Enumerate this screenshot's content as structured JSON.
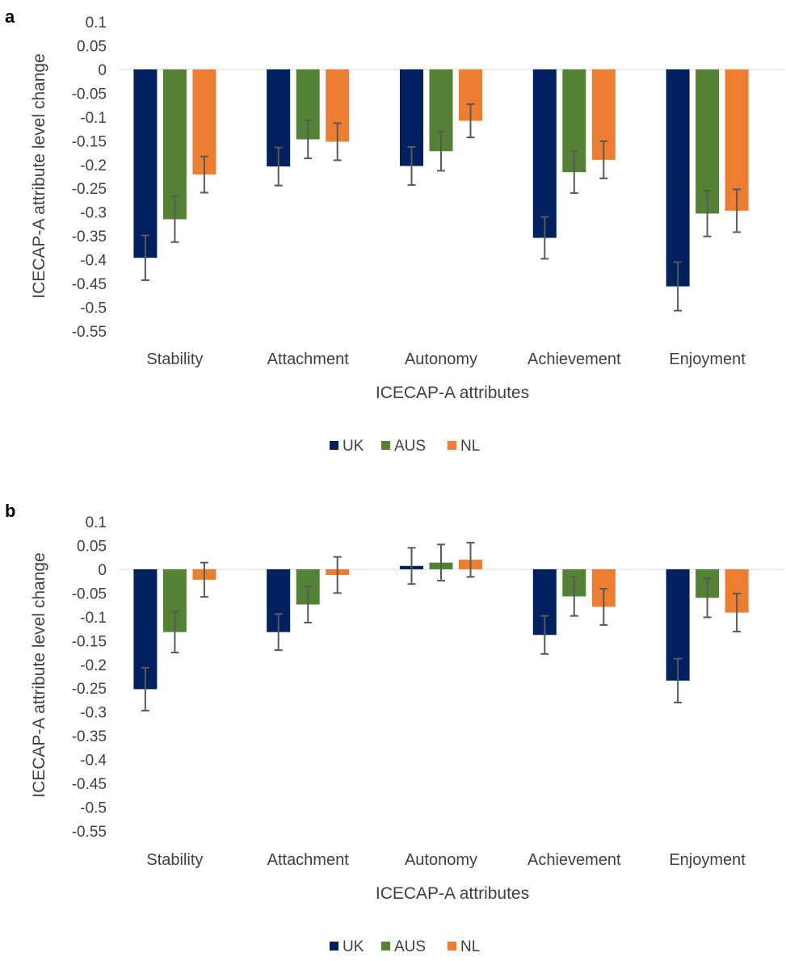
{
  "chart_data": [
    {
      "panel_label": "a",
      "type": "bar",
      "categories": [
        "Stability",
        "Attachment",
        "Autonomy",
        "Achievement",
        "Enjoyment"
      ],
      "series": [
        {
          "name": "UK",
          "color": "#002060",
          "values": [
            -0.396,
            -0.204,
            -0.203,
            -0.354,
            -0.456
          ],
          "error": [
            0.047,
            0.04,
            0.04,
            0.044,
            0.051
          ]
        },
        {
          "name": "AUS",
          "color": "#548235",
          "values": [
            -0.315,
            -0.147,
            -0.172,
            -0.216,
            -0.303
          ],
          "error": [
            0.048,
            0.04,
            0.041,
            0.044,
            0.048
          ]
        },
        {
          "name": "NL",
          "color": "#ed7d31",
          "values": [
            -0.221,
            -0.152,
            -0.108,
            -0.19,
            -0.297
          ],
          "error": [
            0.038,
            0.039,
            0.035,
            0.039,
            0.045
          ]
        }
      ],
      "yticks": [
        "0.1",
        "0.05",
        "0",
        "-0.05",
        "-0.1",
        "-0.15",
        "-0.2",
        "-0.25",
        "-0.3",
        "-0.35",
        "-0.4",
        "-0.45",
        "-0.5",
        "-0.55"
      ],
      "ylim": [
        -0.55,
        0.1
      ],
      "xlabel": "ICECAP-A attributes",
      "ylabel": "ICECAP-A attribute level change",
      "legend": "bottom-center",
      "grid": false
    },
    {
      "panel_label": "b",
      "type": "bar",
      "categories": [
        "Stability",
        "Attachment",
        "Autonomy",
        "Achievement",
        "Enjoyment"
      ],
      "series": [
        {
          "name": "UK",
          "color": "#002060",
          "values": [
            -0.252,
            -0.132,
            0.007,
            -0.138,
            -0.234
          ],
          "error": [
            0.045,
            0.038,
            0.038,
            0.04,
            0.046
          ]
        },
        {
          "name": "AUS",
          "color": "#548235",
          "values": [
            -0.132,
            -0.074,
            0.014,
            -0.057,
            -0.06
          ],
          "error": [
            0.043,
            0.038,
            0.038,
            0.041,
            0.041
          ]
        },
        {
          "name": "NL",
          "color": "#ed7d31",
          "values": [
            -0.022,
            -0.012,
            0.02,
            -0.079,
            -0.091
          ],
          "error": [
            0.036,
            0.038,
            0.036,
            0.038,
            0.04
          ]
        }
      ],
      "yticks": [
        "0.1",
        "0.05",
        "0",
        "-0.05",
        "-0.1",
        "-0.15",
        "-0.2",
        "-0.25",
        "-0.3",
        "-0.35",
        "-0.4",
        "-0.45",
        "-0.5",
        "-0.55"
      ],
      "ylim": [
        -0.55,
        0.1
      ],
      "xlabel": "ICECAP-A attributes",
      "ylabel": "ICECAP-A attribute level change",
      "legend": "bottom-center",
      "grid": false
    }
  ]
}
